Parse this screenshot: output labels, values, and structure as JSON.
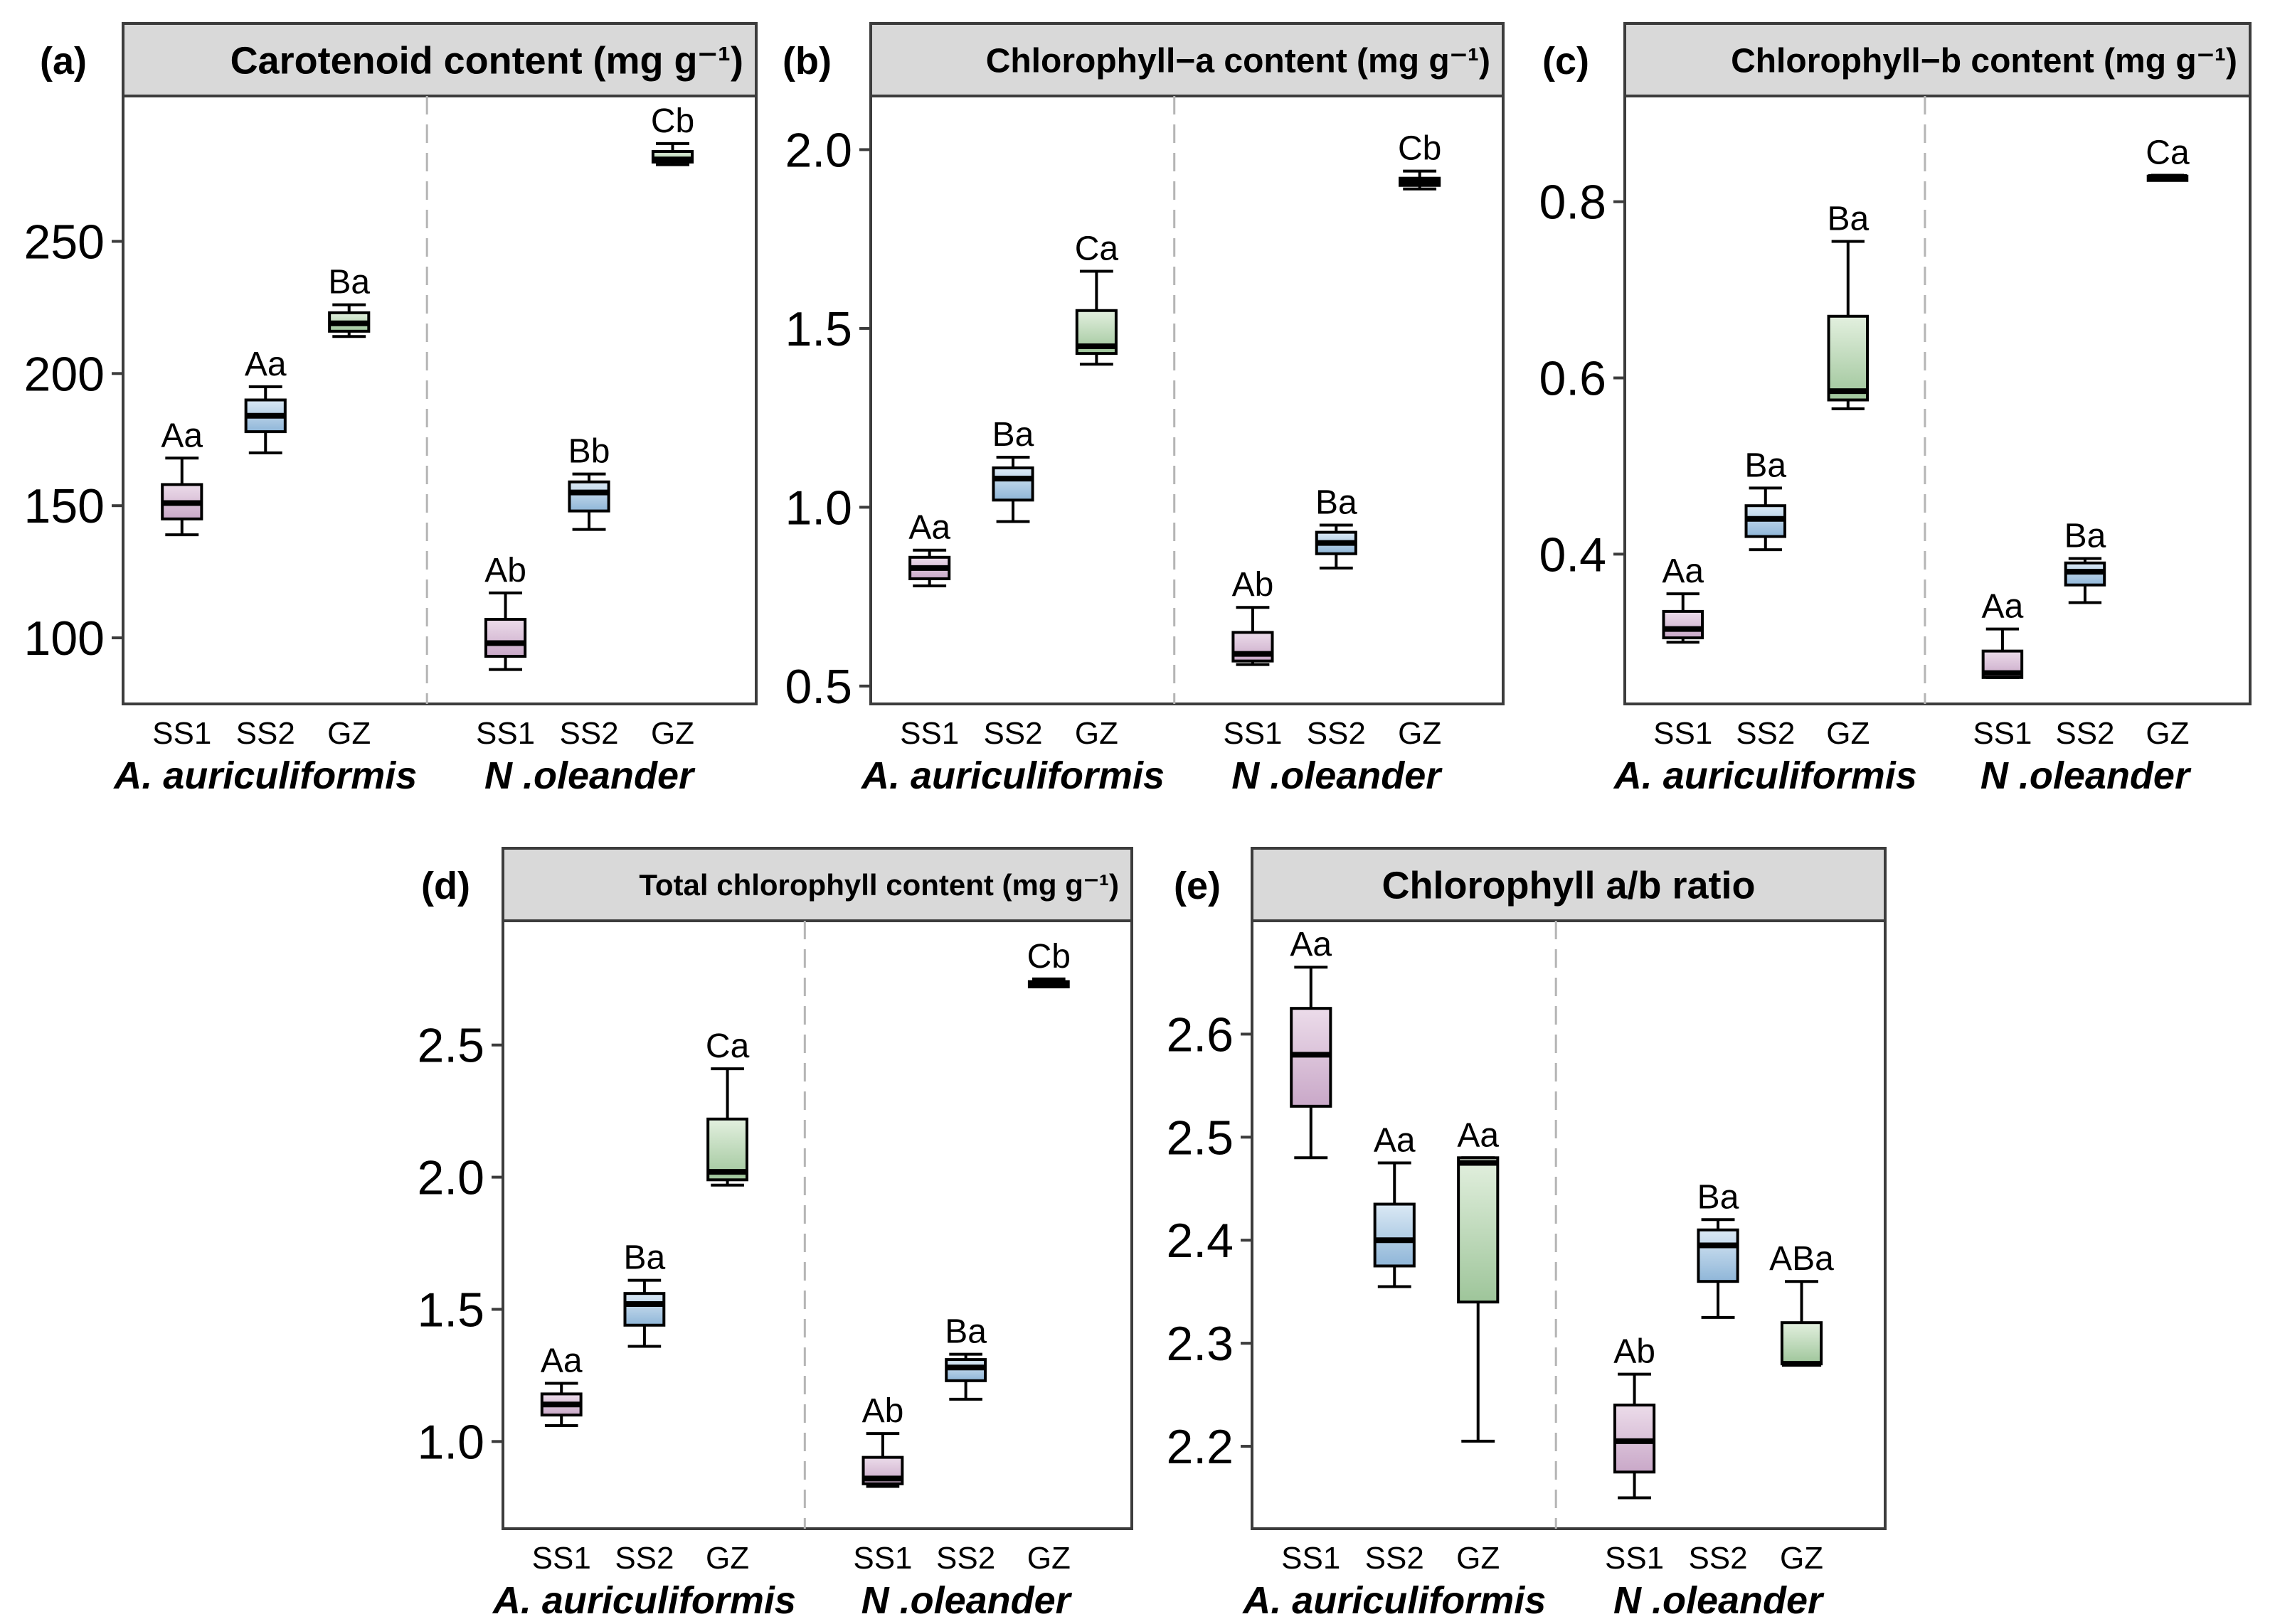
{
  "chart_data": [
    {
      "id": "a",
      "type": "box",
      "panel_label": "(a)",
      "title": "Carotenoid content (mg g⁻¹)",
      "ylim": [
        75,
        305
      ],
      "yticks": [
        100,
        150,
        200,
        250
      ],
      "groups": [
        "A. auriculiformis",
        "N .oleander"
      ],
      "categories": [
        "SS1",
        "SS2",
        "GZ"
      ],
      "boxes": [
        {
          "group": "A. auriculiformis",
          "cat": "SS1",
          "min": 139,
          "q1": 145,
          "median": 151,
          "q3": 158,
          "max": 168,
          "sig": "Aa"
        },
        {
          "group": "A. auriculiformis",
          "cat": "SS2",
          "min": 170,
          "q1": 178,
          "median": 184,
          "q3": 190,
          "max": 195,
          "sig": "Aa"
        },
        {
          "group": "A. auriculiformis",
          "cat": "GZ",
          "min": 214,
          "q1": 216,
          "median": 219,
          "q3": 223,
          "max": 226,
          "sig": "Ba"
        },
        {
          "group": "N .oleander",
          "cat": "SS1",
          "min": 88,
          "q1": 93,
          "median": 98,
          "q3": 107,
          "max": 117,
          "sig": "Ab"
        },
        {
          "group": "N .oleander",
          "cat": "SS2",
          "min": 141,
          "q1": 148,
          "median": 155,
          "q3": 159,
          "max": 162,
          "sig": "Bb"
        },
        {
          "group": "N .oleander",
          "cat": "GZ",
          "min": 279,
          "q1": 280,
          "median": 281,
          "q3": 284,
          "max": 287,
          "sig": "Cb"
        }
      ]
    },
    {
      "id": "b",
      "type": "box",
      "panel_label": "(b)",
      "title": "Chlorophyll−a content (mg g⁻¹)",
      "ylim": [
        0.45,
        2.15
      ],
      "yticks": [
        0.5,
        1.0,
        1.5,
        2.0
      ],
      "ytick_labels": [
        "0.5",
        "1.0",
        "1.5",
        "2.0"
      ],
      "groups": [
        "A. auriculiformis",
        "N .oleander"
      ],
      "categories": [
        "SS1",
        "SS2",
        "GZ"
      ],
      "boxes": [
        {
          "group": "A. auriculiformis",
          "cat": "SS1",
          "min": 0.78,
          "q1": 0.8,
          "median": 0.83,
          "q3": 0.86,
          "max": 0.88,
          "sig": "Aa"
        },
        {
          "group": "A. auriculiformis",
          "cat": "SS2",
          "min": 0.96,
          "q1": 1.02,
          "median": 1.08,
          "q3": 1.11,
          "max": 1.14,
          "sig": "Ba"
        },
        {
          "group": "A. auriculiformis",
          "cat": "GZ",
          "min": 1.4,
          "q1": 1.43,
          "median": 1.45,
          "q3": 1.55,
          "max": 1.66,
          "sig": "Ca"
        },
        {
          "group": "N .oleander",
          "cat": "SS1",
          "min": 0.56,
          "q1": 0.57,
          "median": 0.59,
          "q3": 0.65,
          "max": 0.72,
          "sig": "Ab"
        },
        {
          "group": "N .oleander",
          "cat": "SS2",
          "min": 0.83,
          "q1": 0.87,
          "median": 0.9,
          "q3": 0.93,
          "max": 0.95,
          "sig": "Ba"
        },
        {
          "group": "N .oleander",
          "cat": "GZ",
          "min": 1.89,
          "q1": 1.9,
          "median": 1.91,
          "q3": 1.92,
          "max": 1.94,
          "sig": "Cb"
        }
      ]
    },
    {
      "id": "c",
      "type": "box",
      "panel_label": "(c)",
      "title": "Chlorophyll−b content (mg g⁻¹)",
      "ylim": [
        0.23,
        0.92
      ],
      "yticks": [
        0.4,
        0.6,
        0.8
      ],
      "ytick_labels": [
        "0.4",
        "0.6",
        "0.8"
      ],
      "groups": [
        "A. auriculiformis",
        "N .oleander"
      ],
      "categories": [
        "SS1",
        "SS2",
        "GZ"
      ],
      "boxes": [
        {
          "group": "A. auriculiformis",
          "cat": "SS1",
          "min": 0.3,
          "q1": 0.305,
          "median": 0.315,
          "q3": 0.335,
          "max": 0.355,
          "sig": "Aa"
        },
        {
          "group": "A. auriculiformis",
          "cat": "SS2",
          "min": 0.405,
          "q1": 0.42,
          "median": 0.44,
          "q3": 0.455,
          "max": 0.475,
          "sig": "Ba"
        },
        {
          "group": "A. auriculiformis",
          "cat": "GZ",
          "min": 0.565,
          "q1": 0.575,
          "median": 0.585,
          "q3": 0.67,
          "max": 0.755,
          "sig": "Ba"
        },
        {
          "group": "N .oleander",
          "cat": "SS1",
          "min": 0.26,
          "q1": 0.26,
          "median": 0.265,
          "q3": 0.29,
          "max": 0.315,
          "sig": "Aa"
        },
        {
          "group": "N .oleander",
          "cat": "SS2",
          "min": 0.345,
          "q1": 0.365,
          "median": 0.38,
          "q3": 0.39,
          "max": 0.395,
          "sig": "Ba"
        },
        {
          "group": "N .oleander",
          "cat": "GZ",
          "min": 0.826,
          "q1": 0.826,
          "median": 0.828,
          "q3": 0.829,
          "max": 0.83,
          "sig": "Ca"
        }
      ]
    },
    {
      "id": "d",
      "type": "box",
      "panel_label": "(d)",
      "title": "Total chlorophyll content (mg g⁻¹)",
      "ylim": [
        0.67,
        2.97
      ],
      "yticks": [
        1.0,
        1.5,
        2.0,
        2.5
      ],
      "ytick_labels": [
        "1.0",
        "1.5",
        "2.0",
        "2.5"
      ],
      "groups": [
        "A. auriculiformis",
        "N .oleander"
      ],
      "categories": [
        "SS1",
        "SS2",
        "GZ"
      ],
      "boxes": [
        {
          "group": "A. auriculiformis",
          "cat": "SS1",
          "min": 1.06,
          "q1": 1.1,
          "median": 1.14,
          "q3": 1.18,
          "max": 1.22,
          "sig": "Aa"
        },
        {
          "group": "A. auriculiformis",
          "cat": "SS2",
          "min": 1.36,
          "q1": 1.44,
          "median": 1.52,
          "q3": 1.56,
          "max": 1.61,
          "sig": "Ba"
        },
        {
          "group": "A. auriculiformis",
          "cat": "GZ",
          "min": 1.97,
          "q1": 1.99,
          "median": 2.02,
          "q3": 2.22,
          "max": 2.41,
          "sig": "Ca"
        },
        {
          "group": "N .oleander",
          "cat": "SS1",
          "min": 0.83,
          "q1": 0.84,
          "median": 0.86,
          "q3": 0.94,
          "max": 1.03,
          "sig": "Ab"
        },
        {
          "group": "N .oleander",
          "cat": "SS2",
          "min": 1.16,
          "q1": 1.23,
          "median": 1.28,
          "q3": 1.31,
          "max": 1.33,
          "sig": "Ba"
        },
        {
          "group": "N .oleander",
          "cat": "GZ",
          "min": 2.72,
          "q1": 2.72,
          "median": 2.73,
          "q3": 2.74,
          "max": 2.75,
          "sig": "Cb"
        }
      ]
    },
    {
      "id": "e",
      "type": "box",
      "panel_label": "(e)",
      "title": "Chlorophyll a/b ratio",
      "ylim": [
        2.12,
        2.71
      ],
      "yticks": [
        2.2,
        2.3,
        2.4,
        2.5,
        2.6
      ],
      "ytick_labels": [
        "2.2",
        "2.3",
        "2.4",
        "2.5",
        "2.6"
      ],
      "groups": [
        "A. auriculiformis",
        "N .oleander"
      ],
      "categories": [
        "SS1",
        "SS2",
        "GZ"
      ],
      "boxes": [
        {
          "group": "A. auriculiformis",
          "cat": "SS1",
          "min": 2.48,
          "q1": 2.53,
          "median": 2.58,
          "q3": 2.625,
          "max": 2.665,
          "sig": "Aa"
        },
        {
          "group": "A. auriculiformis",
          "cat": "SS2",
          "min": 2.355,
          "q1": 2.375,
          "median": 2.4,
          "q3": 2.435,
          "max": 2.475,
          "sig": "Aa"
        },
        {
          "group": "A. auriculiformis",
          "cat": "GZ",
          "min": 2.205,
          "q1": 2.34,
          "median": 2.475,
          "q3": 2.48,
          "max": 2.48,
          "sig": "Aa"
        },
        {
          "group": "N .oleander",
          "cat": "SS1",
          "min": 2.15,
          "q1": 2.175,
          "median": 2.205,
          "q3": 2.24,
          "max": 2.27,
          "sig": "Ab"
        },
        {
          "group": "N .oleander",
          "cat": "SS2",
          "min": 2.325,
          "q1": 2.36,
          "median": 2.395,
          "q3": 2.41,
          "max": 2.42,
          "sig": "Ba"
        },
        {
          "group": "N .oleander",
          "cat": "GZ",
          "min": 2.28,
          "q1": 2.28,
          "median": 2.28,
          "q3": 2.32,
          "max": 2.36,
          "sig": "ABa"
        }
      ]
    }
  ],
  "colors": {
    "SS1": [
      "#ecdcea",
      "#c9a8c8"
    ],
    "SS2": [
      "#dbe9f5",
      "#8fb6d8"
    ],
    "GZ": [
      "#e3f0df",
      "#9ec59a"
    ],
    "strip": "#d9d9d9",
    "frame": "#3c3c3c",
    "divider": "#b5b5b5",
    "line": "#000000"
  }
}
